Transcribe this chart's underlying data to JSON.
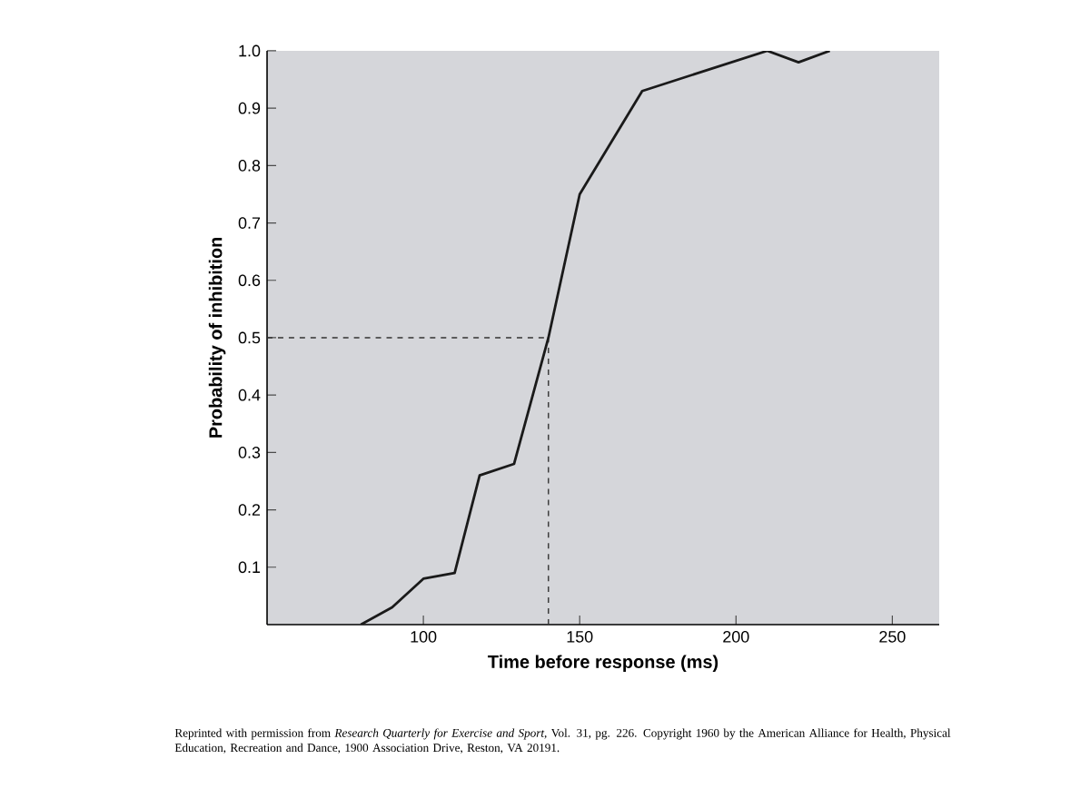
{
  "chart_data": {
    "type": "line",
    "xlabel": "Time before response (ms)",
    "ylabel": "Probability of inhibition",
    "x": [
      80,
      90,
      100,
      110,
      118,
      129,
      140,
      150,
      170,
      210,
      220,
      230
    ],
    "values": [
      0,
      0.03,
      0.08,
      0.09,
      0.26,
      0.28,
      0.5,
      0.75,
      0.93,
      1.0,
      0.98,
      1.0
    ],
    "color": "#1a1a1a",
    "marker": "none",
    "line_style": "solid",
    "xlim": [
      50,
      265
    ],
    "ylim": [
      0,
      1.0
    ],
    "xticks": [
      100,
      150,
      200,
      250
    ],
    "yticks": [
      0.1,
      0.2,
      0.3,
      0.4,
      0.5,
      0.6,
      0.7,
      0.8,
      0.9,
      {
        "value": 1.0,
        "label": "1.0"
      }
    ],
    "ref_lines": [
      {
        "axis": "y",
        "value": 0.5,
        "line_style": "dashed"
      },
      {
        "axis": "x",
        "value": 140,
        "line_style": "dashed"
      }
    ],
    "annotations": [
      "Reprinted with permission from *Research Quarterly for Exercise and Sport*, Vol. 31, pg. 226. Copyright 1960 by the American Alliance for Health, Physical Education, Recreation and Dance, 1900 Association Drive, Reston, VA 20191."
    ]
  }
}
